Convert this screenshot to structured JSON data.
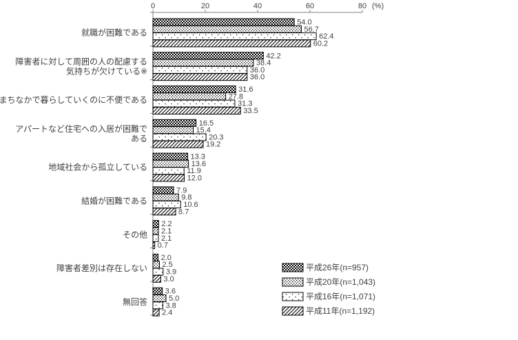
{
  "chart_data": {
    "type": "bar",
    "orientation": "horizontal",
    "title": "",
    "xlabel": "",
    "ylabel": "",
    "unit_label": "(%)",
    "xlim": [
      0,
      80
    ],
    "xticks": [
      0,
      20,
      40,
      60,
      80
    ],
    "grid": false,
    "legend_position": "bottom-right",
    "value_label_decimals": 1,
    "categories": [
      [
        "就職が困難である"
      ],
      [
        "障害者に対して周囲の人の配慮する",
        "気持ちが欠けている※"
      ],
      [
        "まちなかで暮らしていくのに不便である"
      ],
      [
        "アパートなど住宅への入居が困難で",
        "ある"
      ],
      [
        "地域社会から孤立している"
      ],
      [
        "結婚が困難である"
      ],
      [
        "その他"
      ],
      [
        "障害者差別は存在しない"
      ],
      [
        "無回答"
      ]
    ],
    "series": [
      {
        "name": "平成26年(n=957)",
        "pattern": "checker",
        "values": [
          54.0,
          42.2,
          31.6,
          16.5,
          13.3,
          7.9,
          2.2,
          2.0,
          3.6
        ]
      },
      {
        "name": "平成20年(n=1,043)",
        "pattern": "dense-dots",
        "values": [
          56.7,
          38.4,
          27.8,
          15.4,
          13.6,
          9.8,
          2.1,
          2.5,
          5.0
        ]
      },
      {
        "name": "平成16年(n=1,071)",
        "pattern": "sparse-dots",
        "values": [
          62.4,
          36.0,
          31.3,
          20.3,
          11.9,
          10.6,
          2.1,
          3.9,
          3.8
        ]
      },
      {
        "name": "平成11年(n=1,192)",
        "pattern": "diagonal",
        "values": [
          60.2,
          36.0,
          33.5,
          19.2,
          12.0,
          8.7,
          0.7,
          3.0,
          2.4
        ]
      }
    ]
  },
  "colors": {
    "background": "#ffffff",
    "bar_stroke": "#000000",
    "pattern_ink": "#000000",
    "axis": "#808080",
    "text": "#3f3f3f"
  }
}
